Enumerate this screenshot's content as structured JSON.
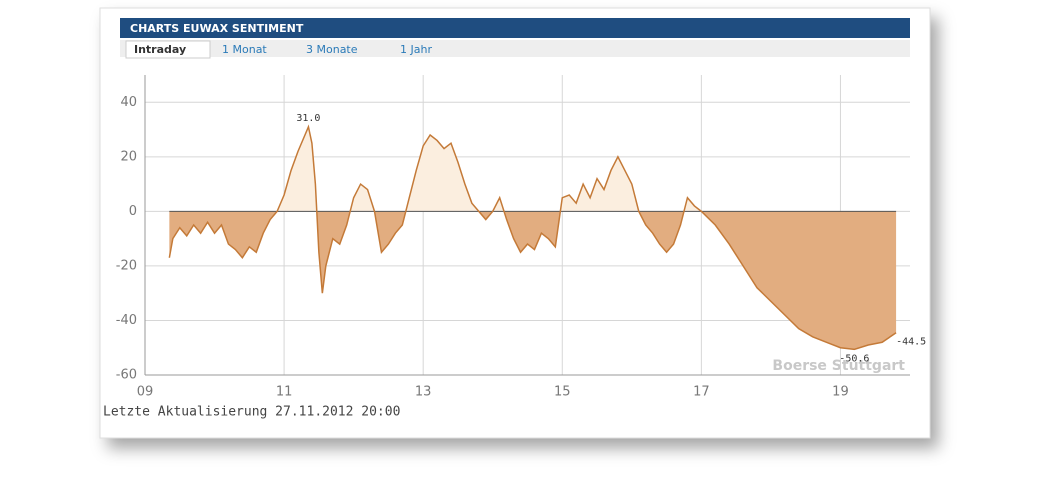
{
  "header": {
    "title": "CHARTS EUWAX SENTIMENT"
  },
  "tabs": [
    "Intraday",
    "1 Monat",
    "3 Monate",
    "1 Jahr"
  ],
  "footer": "Letzte Aktualisierung 27.11.2012 20:00",
  "watermark": "Boerse Stuttgart",
  "chart_data": {
    "type": "area",
    "x": [
      9.35,
      9.4,
      9.5,
      9.6,
      9.7,
      9.8,
      9.9,
      10.0,
      10.1,
      10.2,
      10.3,
      10.4,
      10.5,
      10.6,
      10.7,
      10.8,
      10.9,
      11.0,
      11.1,
      11.2,
      11.3,
      11.35,
      11.4,
      11.45,
      11.5,
      11.55,
      11.6,
      11.7,
      11.8,
      11.9,
      12.0,
      12.1,
      12.2,
      12.3,
      12.4,
      12.5,
      12.6,
      12.7,
      12.8,
      12.9,
      13.0,
      13.1,
      13.2,
      13.3,
      13.4,
      13.5,
      13.6,
      13.7,
      13.8,
      13.9,
      14.0,
      14.1,
      14.2,
      14.3,
      14.4,
      14.5,
      14.6,
      14.7,
      14.8,
      14.9,
      15.0,
      15.1,
      15.2,
      15.3,
      15.4,
      15.5,
      15.6,
      15.7,
      15.8,
      15.9,
      16.0,
      16.1,
      16.2,
      16.3,
      16.4,
      16.5,
      16.6,
      16.7,
      16.8,
      16.9,
      17.0,
      17.2,
      17.4,
      17.6,
      17.8,
      18.0,
      18.2,
      18.4,
      18.6,
      18.8,
      19.0,
      19.2,
      19.4,
      19.6,
      19.8
    ],
    "values": [
      -17,
      -10,
      -6,
      -9,
      -5,
      -8,
      -4,
      -8,
      -5,
      -12,
      -14,
      -17,
      -13,
      -15,
      -8,
      -3,
      0,
      6,
      15,
      22,
      28,
      31,
      25,
      10,
      -15,
      -30,
      -20,
      -10,
      -12,
      -5,
      5,
      10,
      8,
      0,
      -15,
      -12,
      -8,
      -5,
      5,
      15,
      24,
      28,
      26,
      23,
      25,
      18,
      10,
      3,
      0,
      -3,
      0,
      5,
      -3,
      -10,
      -15,
      -12,
      -14,
      -8,
      -10,
      -13,
      5,
      6,
      3,
      10,
      5,
      12,
      8,
      15,
      20,
      15,
      10,
      0,
      -5,
      -8,
      -12,
      -15,
      -12,
      -5,
      5,
      2,
      0,
      -5,
      -12,
      -20,
      -28,
      -33,
      -38,
      -43,
      -46,
      -48,
      -50,
      -50.6,
      -49,
      -48,
      -44.5
    ],
    "color": "#c47a38",
    "fill_above": "#fbeedf",
    "fill_below": "#e2ad80",
    "xlim": [
      9,
      20
    ],
    "ylim": [
      -60,
      50
    ],
    "xticks": [
      {
        "value": 9,
        "label": "09"
      },
      11,
      13,
      15,
      17,
      19
    ],
    "yticks": [
      -60,
      -40,
      -20,
      0,
      20,
      40
    ],
    "grid": true,
    "annotations": [
      {
        "x": 11.35,
        "y": 31,
        "label": "31.0"
      },
      {
        "x": 19.2,
        "y": -50.6,
        "label": "-50.6"
      },
      {
        "x": 19.8,
        "y": -44.5,
        "label": "-44.5"
      }
    ]
  }
}
